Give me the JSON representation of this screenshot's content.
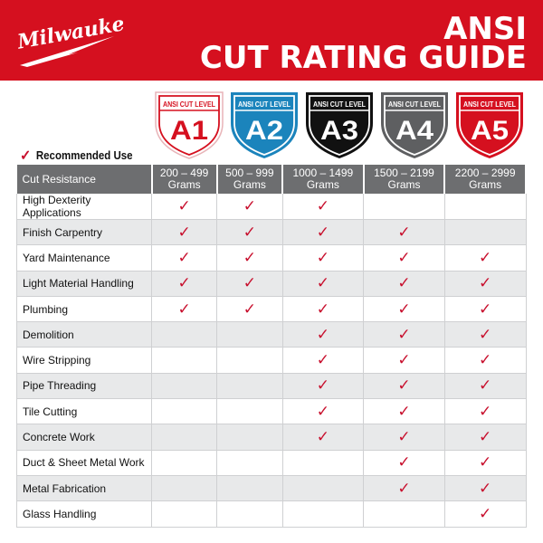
{
  "brand": {
    "logo_text": "Milwaukee",
    "color": "#d5101f"
  },
  "title": {
    "line1": "ANSI",
    "line2": "CUT RATING GUIDE"
  },
  "legend": {
    "icon": "checkmark-icon",
    "label": "Recommended Use"
  },
  "levels": [
    {
      "band": "ANSI CUT LEVEL",
      "code": "A1",
      "fill": "#ffffff",
      "accent": "#d5101f"
    },
    {
      "band": "ANSI CUT LEVEL",
      "code": "A2",
      "fill": "#1b84bc",
      "accent": "#ffffff"
    },
    {
      "band": "ANSI CUT LEVEL",
      "code": "A3",
      "fill": "#111111",
      "accent": "#ffffff"
    },
    {
      "band": "ANSI CUT LEVEL",
      "code": "A4",
      "fill": "#5e5f61",
      "accent": "#ffffff"
    },
    {
      "band": "ANSI CUT LEVEL",
      "code": "A5",
      "fill": "#d5101f",
      "accent": "#ffffff"
    }
  ],
  "table": {
    "header_lines": [
      [
        "Cut Resistance"
      ],
      [
        "200 – 499",
        "Grams"
      ],
      [
        "500 – 999",
        "Grams"
      ],
      [
        "1000 – 1499",
        "Grams"
      ],
      [
        "1500 – 2199",
        "Grams"
      ],
      [
        "2200 – 2999",
        "Grams"
      ]
    ],
    "check": "✓",
    "rows": [
      {
        "label": "High Dexterity Applications",
        "checks": [
          true,
          true,
          true,
          false,
          false
        ]
      },
      {
        "label": "Finish Carpentry",
        "checks": [
          true,
          true,
          true,
          true,
          false
        ]
      },
      {
        "label": "Yard Maintenance",
        "checks": [
          true,
          true,
          true,
          true,
          true
        ]
      },
      {
        "label": "Light Material Handling",
        "checks": [
          true,
          true,
          true,
          true,
          true
        ]
      },
      {
        "label": "Plumbing",
        "checks": [
          true,
          true,
          true,
          true,
          true
        ]
      },
      {
        "label": "Demolition",
        "checks": [
          false,
          false,
          true,
          true,
          true
        ]
      },
      {
        "label": "Wire Stripping",
        "checks": [
          false,
          false,
          true,
          true,
          true
        ]
      },
      {
        "label": "Pipe Threading",
        "checks": [
          false,
          false,
          true,
          true,
          true
        ]
      },
      {
        "label": "Tile Cutting",
        "checks": [
          false,
          false,
          true,
          true,
          true
        ]
      },
      {
        "label": "Concrete Work",
        "checks": [
          false,
          false,
          true,
          true,
          true
        ]
      },
      {
        "label": "Duct & Sheet Metal Work",
        "checks": [
          false,
          false,
          false,
          true,
          true
        ]
      },
      {
        "label": "Metal Fabrication",
        "checks": [
          false,
          false,
          false,
          true,
          true
        ]
      },
      {
        "label": "Glass Handling",
        "checks": [
          false,
          false,
          false,
          false,
          true
        ]
      }
    ]
  }
}
